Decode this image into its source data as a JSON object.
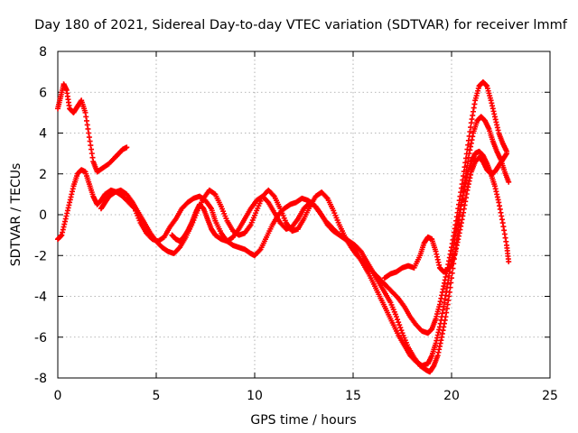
{
  "chart_data": {
    "type": "scatter",
    "title": "Day 180 of 2021, Sidereal Day-to-day VTEC variation (SDTVAR) for receiver lmmf",
    "xlabel": "GPS time / hours",
    "ylabel": "SDTVAR / TECUs",
    "xlim": [
      0,
      25
    ],
    "ylim": [
      -8,
      8
    ],
    "x_ticks": [
      0,
      5,
      10,
      15,
      20,
      25
    ],
    "y_ticks": [
      -8,
      -6,
      -4,
      -2,
      0,
      2,
      4,
      6,
      8
    ],
    "grid": true,
    "marker": "+",
    "marker_color": "#ff0000",
    "series": [
      {
        "x": [
          0.0,
          0.15,
          0.3,
          0.45,
          0.6,
          0.8,
          1.0,
          1.2,
          1.4,
          1.6,
          1.8,
          2.0,
          2.3,
          2.6,
          2.9,
          3.1,
          3.3,
          3.5
        ],
        "y": [
          5.2,
          5.8,
          6.4,
          6.1,
          5.2,
          5.0,
          5.3,
          5.6,
          5.0,
          3.8,
          2.6,
          2.1,
          2.3,
          2.5,
          2.8,
          3.0,
          3.2,
          3.3
        ]
      },
      {
        "x": [
          0.0,
          0.2,
          0.4,
          0.6,
          0.8,
          1.0,
          1.2,
          1.4,
          1.6,
          1.8,
          2.0,
          2.2,
          2.4,
          2.7,
          3.0,
          3.3,
          3.6,
          3.9,
          4.2,
          4.5,
          4.8,
          5.1,
          5.4,
          5.7,
          6.0,
          6.3,
          6.6,
          6.9,
          7.2,
          7.5,
          7.8,
          8.0,
          8.3,
          8.6,
          8.9,
          9.2,
          9.5,
          9.8,
          10.0,
          10.3,
          10.6,
          10.9,
          11.2,
          11.5,
          11.8,
          12.1,
          12.4,
          12.7,
          13.0,
          13.3,
          13.6,
          13.9,
          14.2,
          14.5,
          14.8,
          15.1,
          15.4,
          15.7,
          16.0,
          16.3,
          16.6,
          16.9,
          17.2,
          17.5,
          17.8,
          18.1,
          18.4,
          18.7,
          18.9,
          19.1,
          19.3,
          19.5,
          19.7,
          19.9,
          20.1,
          20.3,
          20.5,
          20.7,
          20.9,
          21.1,
          21.3,
          21.5,
          21.7,
          21.9,
          22.1,
          22.3,
          22.5,
          22.7,
          22.9
        ],
        "y": [
          -1.2,
          -1.0,
          -0.2,
          0.6,
          1.4,
          2.0,
          2.2,
          2.1,
          1.5,
          0.9,
          0.5,
          0.7,
          1.0,
          1.2,
          1.1,
          0.9,
          0.6,
          0.3,
          -0.4,
          -0.9,
          -1.2,
          -1.3,
          -1.1,
          -0.6,
          -0.2,
          0.3,
          0.6,
          0.8,
          0.9,
          0.7,
          0.3,
          -0.3,
          -0.9,
          -1.3,
          -1.5,
          -1.6,
          -1.7,
          -1.9,
          -2.0,
          -1.7,
          -1.1,
          -0.5,
          0.0,
          0.3,
          0.5,
          0.6,
          0.8,
          0.7,
          0.5,
          0.1,
          -0.3,
          -0.6,
          -0.9,
          -1.1,
          -1.3,
          -1.5,
          -1.8,
          -2.3,
          -2.8,
          -3.3,
          -3.8,
          -4.3,
          -5.0,
          -5.8,
          -6.5,
          -7.0,
          -7.4,
          -7.6,
          -7.7,
          -7.4,
          -6.9,
          -6.0,
          -5.0,
          -3.8,
          -2.4,
          -1.0,
          0.5,
          1.8,
          3.0,
          4.0,
          4.6,
          4.8,
          4.6,
          4.2,
          3.6,
          3.1,
          2.7,
          2.1,
          1.6
        ]
      },
      {
        "x": [
          2.2,
          2.4,
          2.6,
          2.9,
          3.2,
          3.5,
          3.8,
          4.1,
          4.4,
          4.7,
          5.0,
          5.3,
          5.6,
          5.9,
          6.2,
          6.5,
          6.8,
          7.1,
          7.4,
          7.7,
          8.0,
          8.3,
          8.6,
          8.9,
          9.2,
          9.5,
          9.8,
          10.1,
          10.4,
          10.7,
          11.0,
          11.3,
          11.6,
          11.9,
          12.2,
          12.5,
          12.8,
          13.1,
          13.4,
          13.7,
          14.0,
          14.3,
          14.6,
          14.9,
          15.2,
          15.5,
          15.8,
          16.1,
          16.4,
          16.7,
          17.0,
          17.3,
          17.6,
          17.9,
          18.2,
          18.5,
          18.8,
          19.0,
          19.2,
          19.4,
          19.6,
          19.8,
          20.0,
          20.2,
          20.4,
          20.6,
          20.8,
          21.0,
          21.2,
          21.4,
          21.6,
          21.8,
          22.0,
          22.2,
          22.4,
          22.6,
          22.8
        ],
        "y": [
          0.3,
          0.6,
          0.9,
          1.1,
          1.2,
          1.0,
          0.6,
          0.1,
          -0.4,
          -0.9,
          -1.3,
          -1.6,
          -1.8,
          -1.9,
          -1.6,
          -1.1,
          -0.5,
          0.2,
          0.8,
          1.2,
          1.0,
          0.4,
          -0.3,
          -0.8,
          -1.0,
          -0.9,
          -0.5,
          0.2,
          0.9,
          1.2,
          0.9,
          0.3,
          -0.4,
          -0.8,
          -0.7,
          -0.2,
          0.4,
          0.9,
          1.1,
          0.8,
          0.2,
          -0.5,
          -1.1,
          -1.6,
          -2.0,
          -2.3,
          -2.6,
          -2.9,
          -3.2,
          -3.5,
          -3.8,
          -4.1,
          -4.5,
          -5.0,
          -5.4,
          -5.7,
          -5.8,
          -5.6,
          -5.1,
          -4.4,
          -3.5,
          -2.6,
          -1.6,
          -0.5,
          0.7,
          1.9,
          3.2,
          4.5,
          5.6,
          6.3,
          6.5,
          6.3,
          5.6,
          4.8,
          4.0,
          3.5,
          3.1
        ]
      },
      {
        "x": [
          5.8,
          6.0,
          6.2,
          6.4,
          6.6,
          6.8,
          7.0,
          7.2,
          7.4,
          7.6,
          7.8,
          8.0,
          8.3,
          8.6,
          8.9,
          9.2,
          9.5,
          9.8,
          10.1,
          10.4,
          10.7,
          11.0,
          11.3,
          11.6,
          11.9,
          12.2,
          12.5,
          12.8,
          13.1,
          13.4,
          13.7,
          14.0,
          14.3,
          14.6,
          14.9,
          15.2,
          15.5,
          15.8,
          16.1,
          16.4,
          16.7,
          17.0,
          17.3,
          17.6,
          17.9,
          18.2,
          18.5,
          18.8,
          19.0,
          19.2,
          19.4,
          19.6,
          19.8,
          20.0,
          20.2,
          20.4,
          20.6,
          20.8,
          21.0,
          21.2,
          21.4,
          21.6,
          21.8,
          22.0,
          22.2,
          22.4,
          22.6,
          22.8,
          22.9
        ],
        "y": [
          -1.0,
          -1.2,
          -1.3,
          -1.1,
          -0.8,
          -0.4,
          0.1,
          0.5,
          0.3,
          -0.2,
          -0.7,
          -1.0,
          -1.2,
          -1.3,
          -1.1,
          -0.7,
          -0.2,
          0.3,
          0.7,
          0.9,
          0.6,
          0.1,
          -0.4,
          -0.7,
          -0.6,
          -0.2,
          0.3,
          0.6,
          0.4,
          0.0,
          -0.5,
          -0.8,
          -1.0,
          -1.2,
          -1.5,
          -1.9,
          -2.4,
          -2.9,
          -3.5,
          -4.1,
          -4.7,
          -5.3,
          -5.9,
          -6.4,
          -6.9,
          -7.2,
          -7.4,
          -7.3,
          -6.9,
          -6.3,
          -5.5,
          -4.5,
          -3.4,
          -2.2,
          -1.0,
          0.1,
          1.1,
          2.0,
          2.6,
          3.0,
          3.1,
          2.9,
          2.5,
          2.0,
          1.4,
          0.6,
          -0.4,
          -1.5,
          -2.3
        ]
      },
      {
        "x": [
          16.6,
          16.9,
          17.2,
          17.5,
          17.8,
          18.1,
          18.4,
          18.6,
          18.8,
          19.0,
          19.2,
          19.4,
          19.6,
          19.8,
          20.0,
          20.2,
          20.4,
          20.6,
          20.8,
          21.0,
          21.2,
          21.4,
          21.6,
          21.8,
          22.0,
          22.2,
          22.4,
          22.6,
          22.8
        ],
        "y": [
          -3.1,
          -2.9,
          -2.8,
          -2.6,
          -2.5,
          -2.6,
          -2.0,
          -1.4,
          -1.1,
          -1.2,
          -1.8,
          -2.6,
          -2.8,
          -2.7,
          -2.4,
          -1.8,
          -0.9,
          0.1,
          1.2,
          2.1,
          2.6,
          2.8,
          2.6,
          2.2,
          2.0,
          2.1,
          2.4,
          2.7,
          3.0
        ]
      }
    ]
  }
}
